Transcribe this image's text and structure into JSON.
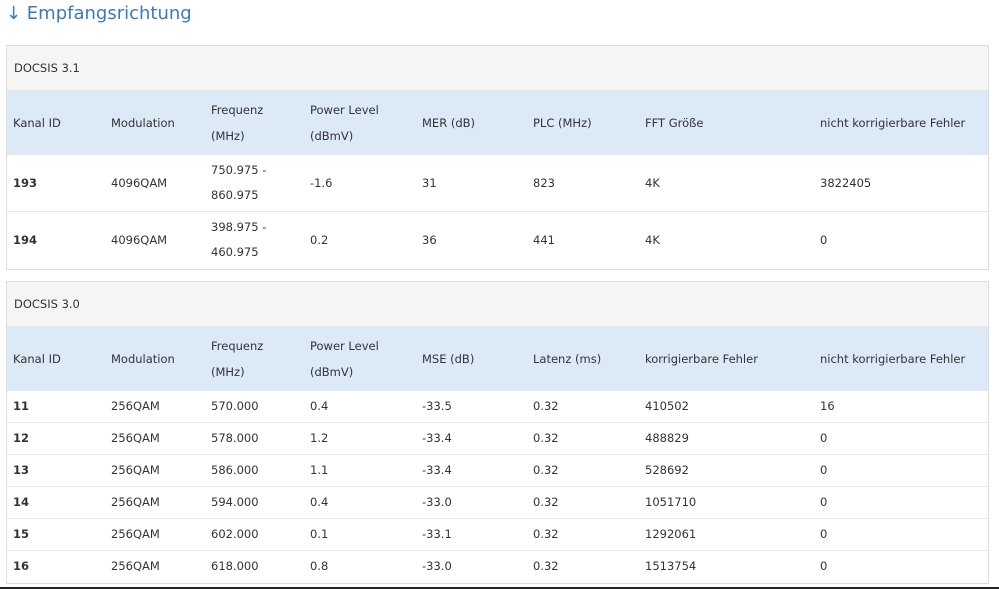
{
  "header": {
    "title": "↓ Empfangsrichtung"
  },
  "tables": [
    {
      "caption": "DOCSIS 3.1",
      "columns": [
        "Kanal ID",
        "Modulation",
        "Frequenz (MHz)",
        "Power Level (dBmV)",
        "MER (dB)",
        "PLC (MHz)",
        "FFT Größe",
        "nicht korrigierbare Fehler"
      ],
      "rows": [
        [
          "193",
          "4096QAM",
          "750.975 - 860.975",
          "-1.6",
          "31",
          "823",
          "4K",
          "3822405"
        ],
        [
          "194",
          "4096QAM",
          "398.975 - 460.975",
          "0.2",
          "36",
          "441",
          "4K",
          "0"
        ]
      ]
    },
    {
      "caption": "DOCSIS 3.0",
      "columns": [
        "Kanal ID",
        "Modulation",
        "Frequenz (MHz)",
        "Power Level (dBmV)",
        "MSE (dB)",
        "Latenz (ms)",
        "korrigierbare Fehler",
        "nicht korrigierbare Fehler"
      ],
      "rows": [
        [
          "11",
          "256QAM",
          "570.000",
          "0.4",
          "-33.5",
          "0.32",
          "410502",
          "16"
        ],
        [
          "12",
          "256QAM",
          "578.000",
          "1.2",
          "-33.4",
          "0.32",
          "488829",
          "0"
        ],
        [
          "13",
          "256QAM",
          "586.000",
          "1.1",
          "-33.4",
          "0.32",
          "528692",
          "0"
        ],
        [
          "14",
          "256QAM",
          "594.000",
          "0.4",
          "-33.0",
          "0.32",
          "1051710",
          "0"
        ],
        [
          "15",
          "256QAM",
          "602.000",
          "0.1",
          "-33.1",
          "0.32",
          "1292061",
          "0"
        ],
        [
          "16",
          "256QAM",
          "618.000",
          "0.8",
          "-33.0",
          "0.32",
          "1513754",
          "0"
        ]
      ]
    }
  ]
}
